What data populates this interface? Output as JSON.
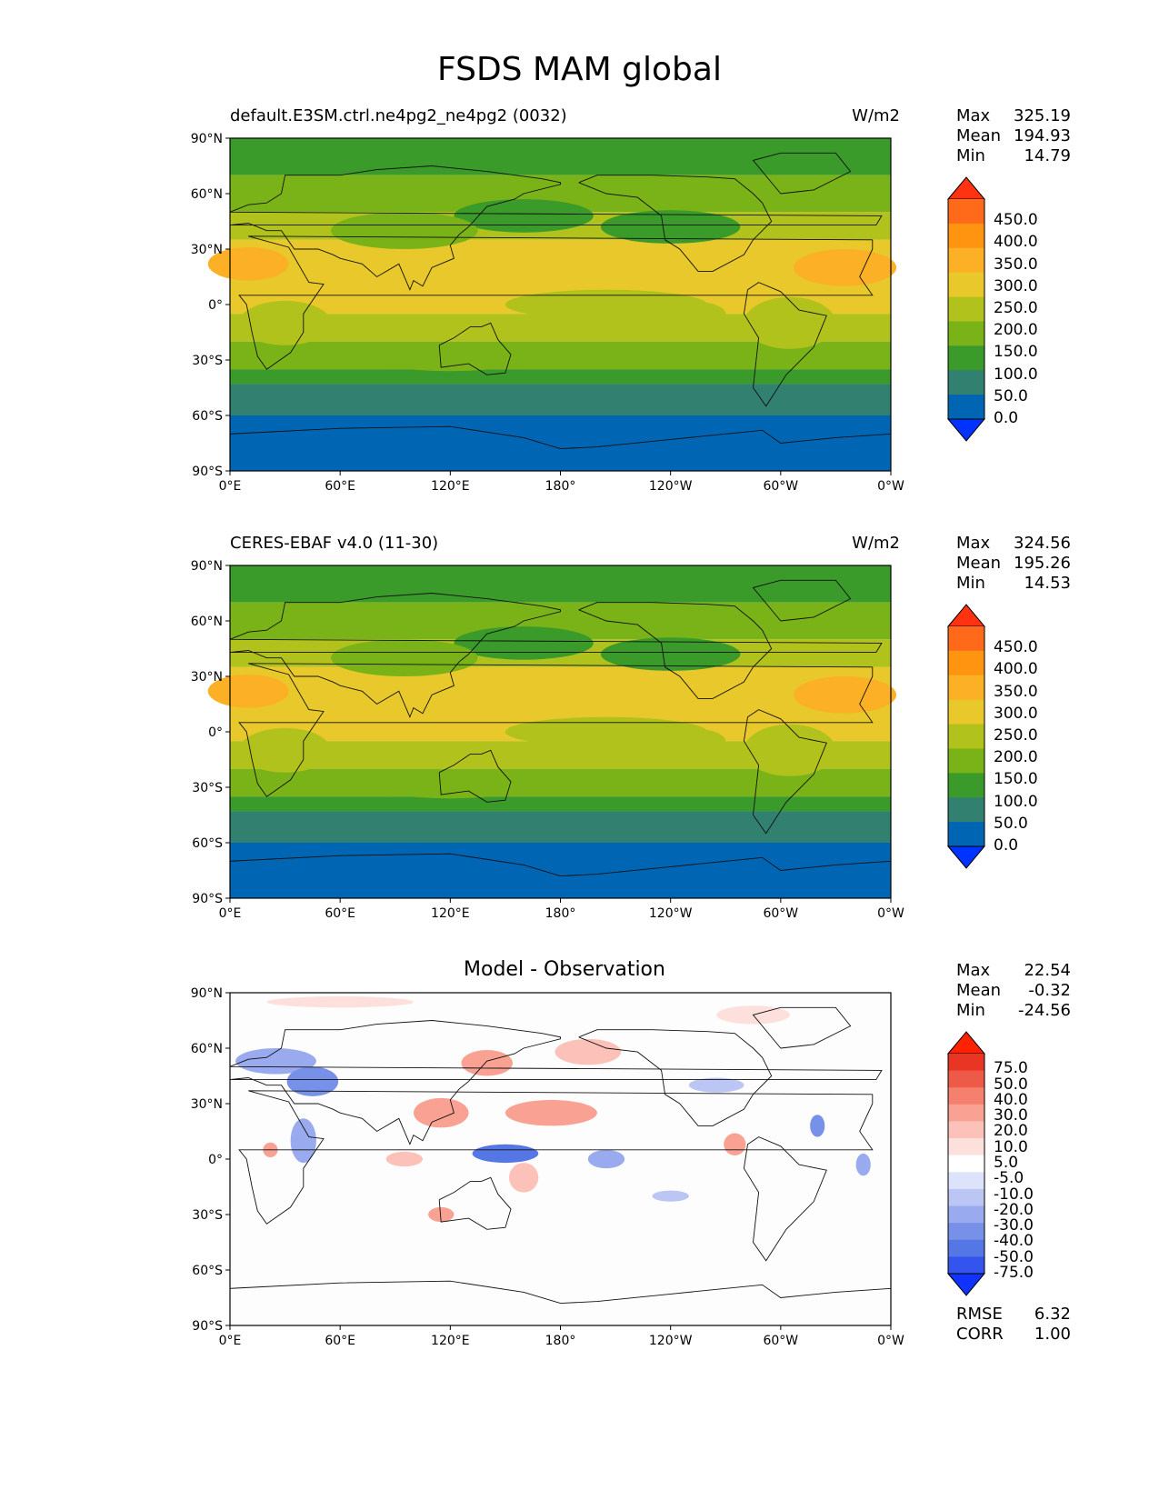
{
  "title": "FSDS MAM global",
  "axis": {
    "lat_ticks": [
      "90°N",
      "60°N",
      "30°N",
      "0°",
      "30°S",
      "60°S",
      "90°S"
    ],
    "lon_ticks": [
      "0°E",
      "60°E",
      "120°E",
      "180°",
      "120°W",
      "60°W",
      "0°W"
    ]
  },
  "panels": [
    {
      "left_title": "default.E3SM.ctrl.ne4pg2_ne4pg2 (0032)",
      "right_title": "W/m2",
      "stats": {
        "max_label": "Max",
        "max": "325.19",
        "mean_label": "Mean",
        "mean": "194.93",
        "min_label": "Min",
        "min": "14.79"
      },
      "colorbar": {
        "labels": [
          "450.0",
          "400.0",
          "350.0",
          "300.0",
          "250.0",
          "200.0",
          "150.0",
          "100.0",
          "50.0",
          "0.0"
        ]
      }
    },
    {
      "left_title": "CERES-EBAF v4.0 (11-30)",
      "right_title": "W/m2",
      "stats": {
        "max_label": "Max",
        "max": "324.56",
        "mean_label": "Mean",
        "mean": "195.26",
        "min_label": "Min",
        "min": "14.53"
      },
      "colorbar": {
        "labels": [
          "450.0",
          "400.0",
          "350.0",
          "300.0",
          "250.0",
          "200.0",
          "150.0",
          "100.0",
          "50.0",
          "0.0"
        ]
      }
    },
    {
      "center_title": "Model - Observation",
      "stats": {
        "max_label": "Max",
        "max": "22.54",
        "mean_label": "Mean",
        "mean": "-0.32",
        "min_label": "Min",
        "min": "-24.56"
      },
      "colorbar": {
        "labels": [
          "75.0",
          "50.0",
          "40.0",
          "30.0",
          "20.0",
          "10.0",
          "5.0",
          "-5.0",
          "-10.0",
          "-20.0",
          "-30.0",
          "-40.0",
          "-50.0",
          "-75.0"
        ]
      },
      "scores": {
        "rmse_label": "RMSE",
        "rmse": "6.32",
        "corr_label": "CORR",
        "corr": "1.00"
      }
    }
  ],
  "colors": {
    "abs_scale": [
      "#0033ff",
      "#0066b3",
      "#318070",
      "#3a9a2a",
      "#7ab317",
      "#b2c21c",
      "#e8c82a",
      "#fbb026",
      "#ff9410",
      "#ff6a1a",
      "#ff3311"
    ],
    "diff_scale": [
      "#1133ff",
      "#3355ee",
      "#5577e6",
      "#7790e8",
      "#99aaee",
      "#bbc6f4",
      "#dde3fa",
      "#ffffff",
      "#fde0dc",
      "#fcc2b9",
      "#f9a293",
      "#f5806d",
      "#ee5a48",
      "#e83524",
      "#ff2200"
    ]
  }
}
